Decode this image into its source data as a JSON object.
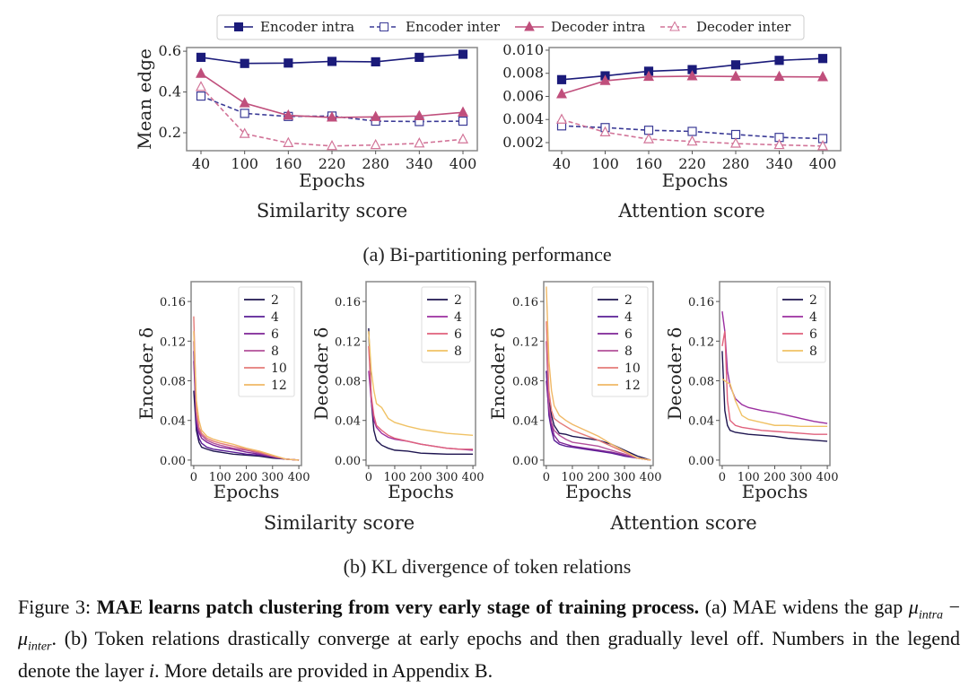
{
  "figure": {
    "subcaption_a": "(a) Bi-partitioning performance",
    "subcaption_b": "(b) KL divergence of token relations",
    "caption": {
      "label": "Figure 3:",
      "bold": "MAE learns patch clustering from very early stage of training process.",
      "part1": "(a) MAE widens the gap",
      "mu": "μ",
      "intra": "intra",
      "minus": " − ",
      "inter": "inter",
      "part2": ". (b) Token relations drastically converge at early epochs and then gradually level off. Numbers in the legend denote the layer",
      "var_i": "i",
      "part3": ". More details are provided in Appendix B."
    }
  },
  "chart_data": [
    {
      "type": "line",
      "title": "Similarity score",
      "xlabel": "Epochs",
      "ylabel": "Mean edge",
      "x": [
        40,
        100,
        160,
        220,
        280,
        340,
        400
      ],
      "ylim": [
        0.112,
        0.618
      ],
      "yticks": [
        0.2,
        0.4,
        0.6
      ],
      "ytick_labels": [
        "0.2",
        "0.4",
        "0.6"
      ],
      "xtick_labels": [
        "40",
        "100",
        "160",
        "220",
        "280",
        "340",
        "400"
      ],
      "legend_position": "top-center",
      "series": [
        {
          "name": "Encoder intra",
          "color": "#1b1b7a",
          "dashed": false,
          "marker": "square-filled",
          "values": [
            0.57,
            0.54,
            0.542,
            0.55,
            0.548,
            0.57,
            0.585
          ]
        },
        {
          "name": "Encoder inter",
          "color": "#3a3a96",
          "dashed": true,
          "marker": "square-open",
          "values": [
            0.38,
            0.295,
            0.28,
            0.282,
            0.257,
            0.255,
            0.257
          ]
        },
        {
          "name": "Decoder intra",
          "color": "#c04f7c",
          "dashed": false,
          "marker": "triangle-filled",
          "values": [
            0.49,
            0.345,
            0.285,
            0.275,
            0.278,
            0.282,
            0.3
          ]
        },
        {
          "name": "Decoder inter",
          "color": "#d27498",
          "dashed": true,
          "marker": "triangle-open",
          "values": [
            0.425,
            0.195,
            0.15,
            0.135,
            0.14,
            0.148,
            0.168
          ]
        }
      ]
    },
    {
      "type": "line",
      "title": "Attention score",
      "xlabel": "Epochs",
      "ylabel": "",
      "x": [
        40,
        100,
        160,
        220,
        280,
        340,
        400
      ],
      "ylim": [
        0.0013,
        0.01023
      ],
      "yticks": [
        0.002,
        0.004,
        0.006,
        0.008,
        0.01
      ],
      "ytick_labels": [
        "0.002",
        "0.004",
        "0.006",
        "0.008",
        "0.010"
      ],
      "xtick_labels": [
        "40",
        "100",
        "160",
        "220",
        "280",
        "340",
        "400"
      ],
      "series": [
        {
          "name": "Encoder intra",
          "color": "#1b1b7a",
          "dashed": false,
          "marker": "square-filled",
          "values": [
            0.00745,
            0.00778,
            0.00818,
            0.00832,
            0.00873,
            0.00912,
            0.00928
          ]
        },
        {
          "name": "Encoder inter",
          "color": "#3a3a96",
          "dashed": true,
          "marker": "square-open",
          "values": [
            0.00345,
            0.0033,
            0.00307,
            0.00297,
            0.0027,
            0.00245,
            0.00235
          ]
        },
        {
          "name": "Decoder intra",
          "color": "#c04f7c",
          "dashed": false,
          "marker": "triangle-filled",
          "values": [
            0.0062,
            0.00735,
            0.0077,
            0.00775,
            0.00772,
            0.0077,
            0.00768
          ]
        },
        {
          "name": "Decoder inter",
          "color": "#d27498",
          "dashed": true,
          "marker": "triangle-open",
          "values": [
            0.004,
            0.0029,
            0.0023,
            0.0021,
            0.00192,
            0.0018,
            0.0017
          ]
        }
      ]
    },
    {
      "type": "line",
      "group_title": "Similarity score",
      "xlabel": "Epochs",
      "ylabel": "Encoder δ",
      "x": [
        0,
        10,
        20,
        30,
        50,
        75,
        100,
        150,
        200,
        250,
        300,
        350,
        400
      ],
      "xlim": [
        -10,
        410
      ],
      "ylim": [
        -0.0055,
        0.18
      ],
      "yticks": [
        0,
        0.04,
        0.08,
        0.12,
        0.16
      ],
      "ytick_labels": [
        "0.00",
        "0.04",
        "0.08",
        "0.12",
        "0.16"
      ],
      "xticks": [
        0,
        100,
        200,
        300,
        400
      ],
      "xtick_labels": [
        "0",
        "100",
        "200",
        "300",
        "400"
      ],
      "legend_position": "top-right",
      "series": [
        {
          "name": "2",
          "color": "#1e1550",
          "values": [
            0.07,
            0.03,
            0.018,
            0.013,
            0.011,
            0.009,
            0.008,
            0.006,
            0.005,
            0.004,
            0.002,
            0.001,
            0
          ]
        },
        {
          "name": "4",
          "color": "#5a1f96",
          "values": [
            0.11,
            0.035,
            0.022,
            0.017,
            0.013,
            0.011,
            0.01,
            0.008,
            0.006,
            0.005,
            0.003,
            0.001,
            0
          ]
        },
        {
          "name": "6",
          "color": "#7e2596",
          "values": [
            0.1,
            0.04,
            0.028,
            0.022,
            0.018,
            0.015,
            0.013,
            0.011,
            0.008,
            0.006,
            0.003,
            0.001,
            0
          ]
        },
        {
          "name": "8",
          "color": "#b3509a",
          "values": [
            0.12,
            0.045,
            0.03,
            0.025,
            0.02,
            0.017,
            0.015,
            0.012,
            0.01,
            0.007,
            0.004,
            0.001,
            0
          ]
        },
        {
          "name": "10",
          "color": "#e47b78",
          "values": [
            0.145,
            0.05,
            0.033,
            0.027,
            0.022,
            0.019,
            0.017,
            0.014,
            0.011,
            0.008,
            0.004,
            0.001,
            0
          ]
        },
        {
          "name": "12",
          "color": "#f0b866",
          "values": [
            0.13,
            0.06,
            0.04,
            0.03,
            0.024,
            0.021,
            0.019,
            0.016,
            0.012,
            0.009,
            0.005,
            0.001,
            0
          ]
        }
      ]
    },
    {
      "type": "line",
      "group_title": "Similarity score",
      "xlabel": "Epochs",
      "ylabel": "Decoder δ",
      "x": [
        0,
        10,
        20,
        30,
        50,
        75,
        100,
        150,
        200,
        250,
        300,
        350,
        400
      ],
      "xlim": [
        -10,
        410
      ],
      "ylim": [
        -0.0055,
        0.18
      ],
      "yticks": [
        0,
        0.04,
        0.08,
        0.12,
        0.16
      ],
      "ytick_labels": [
        "0.00",
        "0.04",
        "0.08",
        "0.12",
        "0.16"
      ],
      "xticks": [
        0,
        100,
        200,
        300,
        400
      ],
      "xtick_labels": [
        "0",
        "100",
        "200",
        "300",
        "400"
      ],
      "legend_position": "top-right",
      "series": [
        {
          "name": "2",
          "color": "#1e1550",
          "values": [
            0.133,
            0.06,
            0.03,
            0.02,
            0.015,
            0.012,
            0.01,
            0.009,
            0.007,
            0.0065,
            0.006,
            0.006,
            0.006
          ]
        },
        {
          "name": "4",
          "color": "#9b2fa0",
          "values": [
            0.09,
            0.06,
            0.04,
            0.033,
            0.027,
            0.023,
            0.021,
            0.019,
            0.016,
            0.014,
            0.012,
            0.011,
            0.01
          ]
        },
        {
          "name": "6",
          "color": "#e0617c",
          "values": [
            0.115,
            0.065,
            0.045,
            0.035,
            0.03,
            0.025,
            0.022,
            0.019,
            0.016,
            0.014,
            0.012,
            0.011,
            0.011
          ]
        },
        {
          "name": "8",
          "color": "#f0c265",
          "values": [
            0.13,
            0.09,
            0.07,
            0.057,
            0.053,
            0.042,
            0.038,
            0.034,
            0.031,
            0.029,
            0.027,
            0.026,
            0.025
          ]
        }
      ]
    },
    {
      "type": "line",
      "group_title": "Attention score",
      "xlabel": "Epochs",
      "ylabel": "Encoder δ",
      "x": [
        0,
        10,
        20,
        30,
        50,
        75,
        100,
        150,
        200,
        250,
        300,
        350,
        400
      ],
      "xlim": [
        -10,
        410
      ],
      "ylim": [
        -0.0055,
        0.18
      ],
      "yticks": [
        0,
        0.04,
        0.08,
        0.12,
        0.16
      ],
      "ytick_labels": [
        "0.00",
        "0.04",
        "0.08",
        "0.12",
        "0.16"
      ],
      "xticks": [
        0,
        100,
        200,
        300,
        400
      ],
      "xtick_labels": [
        "0",
        "100",
        "200",
        "300",
        "400"
      ],
      "legend_position": "top-right",
      "series": [
        {
          "name": "2",
          "color": "#1e1550",
          "values": [
            0.09,
            0.06,
            0.045,
            0.035,
            0.027,
            0.026,
            0.024,
            0.022,
            0.02,
            0.016,
            0.01,
            0.004,
            0
          ]
        },
        {
          "name": "4",
          "color": "#5a1f96",
          "values": [
            0.09,
            0.045,
            0.03,
            0.02,
            0.016,
            0.014,
            0.013,
            0.011,
            0.009,
            0.007,
            0.004,
            0.002,
            0
          ]
        },
        {
          "name": "6",
          "color": "#7e2596",
          "values": [
            0.08,
            0.05,
            0.035,
            0.025,
            0.018,
            0.016,
            0.014,
            0.012,
            0.01,
            0.008,
            0.005,
            0.002,
            0
          ]
        },
        {
          "name": "8",
          "color": "#b3509a",
          "values": [
            0.12,
            0.055,
            0.038,
            0.03,
            0.025,
            0.021,
            0.018,
            0.016,
            0.014,
            0.01,
            0.006,
            0.002,
            0
          ]
        },
        {
          "name": "10",
          "color": "#e47b78",
          "values": [
            0.14,
            0.07,
            0.05,
            0.042,
            0.038,
            0.034,
            0.03,
            0.025,
            0.02,
            0.014,
            0.008,
            0.002,
            0
          ]
        },
        {
          "name": "12",
          "color": "#f0b866",
          "values": [
            0.175,
            0.1,
            0.07,
            0.055,
            0.045,
            0.04,
            0.036,
            0.03,
            0.024,
            0.016,
            0.009,
            0.002,
            0
          ]
        }
      ]
    },
    {
      "type": "line",
      "group_title": "Attention score",
      "xlabel": "Epochs",
      "ylabel": "Decoder δ",
      "x": [
        0,
        10,
        20,
        30,
        50,
        75,
        100,
        150,
        200,
        250,
        300,
        350,
        400
      ],
      "xlim": [
        -10,
        410
      ],
      "ylim": [
        -0.0055,
        0.18
      ],
      "yticks": [
        0,
        0.04,
        0.08,
        0.12,
        0.16
      ],
      "ytick_labels": [
        "0.00",
        "0.04",
        "0.08",
        "0.12",
        "0.16"
      ],
      "xticks": [
        0,
        100,
        200,
        300,
        400
      ],
      "xtick_labels": [
        "0",
        "100",
        "200",
        "300",
        "400"
      ],
      "legend_position": "top-right",
      "series": [
        {
          "name": "2",
          "color": "#1e1550",
          "values": [
            0.11,
            0.05,
            0.035,
            0.03,
            0.028,
            0.027,
            0.026,
            0.025,
            0.024,
            0.022,
            0.021,
            0.02,
            0.019
          ]
        },
        {
          "name": "4",
          "color": "#9b2fa0",
          "values": [
            0.15,
            0.13,
            0.09,
            0.075,
            0.062,
            0.056,
            0.053,
            0.05,
            0.048,
            0.045,
            0.042,
            0.039,
            0.037
          ]
        },
        {
          "name": "6",
          "color": "#e0617c",
          "values": [
            0.115,
            0.13,
            0.06,
            0.04,
            0.035,
            0.033,
            0.032,
            0.03,
            0.029,
            0.028,
            0.027,
            0.026,
            0.026
          ]
        },
        {
          "name": "8",
          "color": "#f0c265",
          "values": [
            0.082,
            0.08,
            0.078,
            0.077,
            0.06,
            0.045,
            0.041,
            0.038,
            0.035,
            0.035,
            0.034,
            0.034,
            0.034
          ]
        }
      ]
    }
  ]
}
